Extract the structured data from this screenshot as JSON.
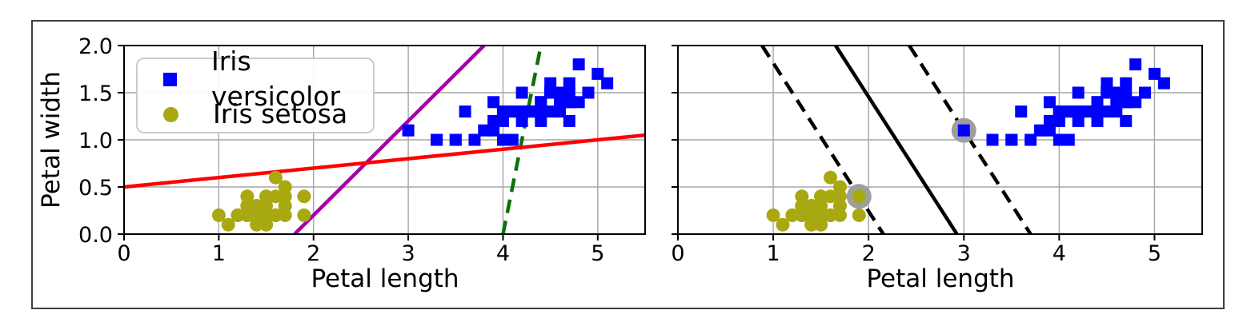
{
  "figure": {
    "background": "#ffffff",
    "border_color": "#3f3f3f"
  },
  "legend": {
    "items": [
      {
        "label": "Iris versicolor",
        "marker": "square",
        "color": "#0000ff"
      },
      {
        "label": "Iris setosa",
        "marker": "circle",
        "color": "#a8a810"
      }
    ]
  },
  "chart_data": {
    "type": "scatter",
    "xlim": [
      0,
      5.5
    ],
    "ylim": [
      0,
      2.0
    ],
    "xticks": {
      "values": [
        0,
        1,
        2,
        3,
        4,
        5
      ],
      "labels": [
        "0",
        "1",
        "2",
        "3",
        "4",
        "5"
      ]
    },
    "yticks": {
      "values": [
        0,
        0.5,
        1.0,
        1.5,
        2.0
      ],
      "labels": [
        "0.0",
        "0.5",
        "1.0",
        "1.5",
        "2.0"
      ]
    },
    "grid": true,
    "grid_color": "#a6a6a6",
    "series": [
      {
        "name": "Iris versicolor",
        "marker": "square",
        "color": "#0000ff",
        "points": [
          [
            4.7,
            1.4
          ],
          [
            4.5,
            1.5
          ],
          [
            4.9,
            1.5
          ],
          [
            4.0,
            1.3
          ],
          [
            4.6,
            1.5
          ],
          [
            4.5,
            1.3
          ],
          [
            4.7,
            1.6
          ],
          [
            3.3,
            1.0
          ],
          [
            4.6,
            1.3
          ],
          [
            3.9,
            1.4
          ],
          [
            3.5,
            1.0
          ],
          [
            4.2,
            1.5
          ],
          [
            4.0,
            1.0
          ],
          [
            4.7,
            1.4
          ],
          [
            3.6,
            1.3
          ],
          [
            4.4,
            1.4
          ],
          [
            4.5,
            1.5
          ],
          [
            4.1,
            1.0
          ],
          [
            4.5,
            1.5
          ],
          [
            3.9,
            1.1
          ],
          [
            4.8,
            1.8
          ],
          [
            4.0,
            1.3
          ],
          [
            4.9,
            1.5
          ],
          [
            4.7,
            1.2
          ],
          [
            4.3,
            1.3
          ],
          [
            4.4,
            1.4
          ],
          [
            4.8,
            1.4
          ],
          [
            5.0,
            1.7
          ],
          [
            4.5,
            1.5
          ],
          [
            3.5,
            1.0
          ],
          [
            3.8,
            1.1
          ],
          [
            3.7,
            1.0
          ],
          [
            3.9,
            1.2
          ],
          [
            5.1,
            1.6
          ],
          [
            4.5,
            1.5
          ],
          [
            4.5,
            1.6
          ],
          [
            4.7,
            1.5
          ],
          [
            4.4,
            1.3
          ],
          [
            4.1,
            1.3
          ],
          [
            4.0,
            1.3
          ],
          [
            4.4,
            1.2
          ],
          [
            4.6,
            1.4
          ],
          [
            4.0,
            1.2
          ],
          [
            3.3,
            1.0
          ],
          [
            4.2,
            1.3
          ],
          [
            4.2,
            1.2
          ],
          [
            4.2,
            1.3
          ],
          [
            4.3,
            1.3
          ],
          [
            3.0,
            1.1
          ],
          [
            4.1,
            1.3
          ]
        ]
      },
      {
        "name": "Iris setosa",
        "marker": "circle",
        "color": "#a8a810",
        "points": [
          [
            1.4,
            0.2
          ],
          [
            1.4,
            0.2
          ],
          [
            1.3,
            0.2
          ],
          [
            1.5,
            0.2
          ],
          [
            1.4,
            0.2
          ],
          [
            1.7,
            0.4
          ],
          [
            1.4,
            0.3
          ],
          [
            1.5,
            0.2
          ],
          [
            1.4,
            0.2
          ],
          [
            1.5,
            0.1
          ],
          [
            1.5,
            0.2
          ],
          [
            1.6,
            0.2
          ],
          [
            1.4,
            0.1
          ],
          [
            1.1,
            0.1
          ],
          [
            1.2,
            0.2
          ],
          [
            1.5,
            0.4
          ],
          [
            1.3,
            0.4
          ],
          [
            1.4,
            0.3
          ],
          [
            1.7,
            0.3
          ],
          [
            1.5,
            0.3
          ],
          [
            1.7,
            0.2
          ],
          [
            1.5,
            0.4
          ],
          [
            1.0,
            0.2
          ],
          [
            1.7,
            0.5
          ],
          [
            1.9,
            0.2
          ],
          [
            1.6,
            0.2
          ],
          [
            1.6,
            0.4
          ],
          [
            1.5,
            0.2
          ],
          [
            1.4,
            0.2
          ],
          [
            1.6,
            0.2
          ],
          [
            1.6,
            0.2
          ],
          [
            1.5,
            0.4
          ],
          [
            1.5,
            0.1
          ],
          [
            1.4,
            0.2
          ],
          [
            1.5,
            0.2
          ],
          [
            1.2,
            0.2
          ],
          [
            1.3,
            0.2
          ],
          [
            1.4,
            0.1
          ],
          [
            1.3,
            0.2
          ],
          [
            1.5,
            0.2
          ],
          [
            1.3,
            0.3
          ],
          [
            1.3,
            0.3
          ],
          [
            1.3,
            0.2
          ],
          [
            1.6,
            0.6
          ],
          [
            1.9,
            0.4
          ],
          [
            1.4,
            0.3
          ],
          [
            1.6,
            0.2
          ],
          [
            1.4,
            0.2
          ],
          [
            1.5,
            0.2
          ],
          [
            1.4,
            0.2
          ]
        ]
      }
    ],
    "subplots": [
      {
        "xlabel": "Petal length",
        "ylabel": "Petal width",
        "show_ytick_labels": true,
        "show_legend": true,
        "lines": [
          {
            "name": "classifier-green-dashed",
            "color": "#0a720a",
            "style": "dashed",
            "points": [
              [
                4.0,
                0.0
              ],
              [
                4.4,
                2.0
              ]
            ]
          },
          {
            "name": "classifier-magenta",
            "color": "#a500a5",
            "style": "solid",
            "points": [
              [
                1.8,
                0.0
              ],
              [
                3.8,
                2.0
              ]
            ]
          },
          {
            "name": "classifier-red",
            "color": "#ff0000",
            "style": "solid",
            "points": [
              [
                0.0,
                0.5
              ],
              [
                5.5,
                1.05
              ]
            ]
          }
        ],
        "support_vectors": []
      },
      {
        "xlabel": "Petal length",
        "ylabel": "",
        "show_ytick_labels": false,
        "show_legend": false,
        "lines": [
          {
            "name": "svm-margin-left",
            "color": "#000000",
            "style": "dashed",
            "points": [
              [
                0.882,
                2.0
              ],
              [
                2.155,
                0.0
              ]
            ]
          },
          {
            "name": "svm-decision-boundary",
            "color": "#000000",
            "style": "solid",
            "points": [
              [
                1.654,
                2.0
              ],
              [
                2.927,
                0.0
              ]
            ]
          },
          {
            "name": "svm-margin-right",
            "color": "#000000",
            "style": "dashed",
            "points": [
              [
                2.427,
                2.0
              ],
              [
                3.7,
                0.0
              ]
            ]
          }
        ],
        "support_vectors": [
          [
            1.9,
            0.4
          ],
          [
            3.0,
            1.1
          ]
        ],
        "sv_ring_color": "#9e9e9e"
      }
    ]
  }
}
